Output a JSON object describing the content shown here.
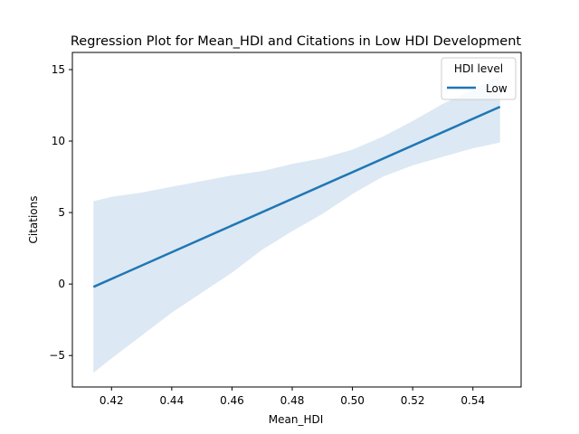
{
  "chart_data": {
    "type": "line",
    "title": "Regression Plot for Mean_HDI and Citations in Low HDI Development",
    "xlabel": "Mean_HDI",
    "ylabel": "Citations",
    "xlim": [
      0.407,
      0.556
    ],
    "ylim": [
      -7.2,
      16.2
    ],
    "x_ticks": [
      0.42,
      0.44,
      0.46,
      0.48,
      0.5,
      0.52,
      0.54
    ],
    "x_tick_labels": [
      "0.42",
      "0.44",
      "0.46",
      "0.48",
      "0.50",
      "0.52",
      "0.54"
    ],
    "y_ticks": [
      -5,
      0,
      5,
      10,
      15
    ],
    "y_tick_labels": [
      "−5",
      "0",
      "5",
      "10",
      "15"
    ],
    "grid": false,
    "legend": {
      "title": "HDI level",
      "placement": "top-right",
      "entries": [
        "Low"
      ]
    },
    "series": [
      {
        "name": "Low",
        "color": "#1f77b4",
        "band_color": "#dce8f3",
        "x": [
          0.414,
          0.549
        ],
        "y": [
          -0.2,
          12.4
        ]
      }
    ],
    "confidence_band": {
      "x": [
        0.414,
        0.42,
        0.43,
        0.44,
        0.45,
        0.46,
        0.47,
        0.48,
        0.49,
        0.5,
        0.51,
        0.52,
        0.53,
        0.54,
        0.549
      ],
      "upper": [
        5.8,
        6.1,
        6.4,
        6.8,
        7.2,
        7.6,
        7.9,
        8.4,
        8.8,
        9.4,
        10.3,
        11.4,
        12.6,
        13.6,
        14.6
      ],
      "lower": [
        -6.2,
        -5.2,
        -3.6,
        -2.0,
        -0.6,
        0.8,
        2.4,
        3.7,
        4.9,
        6.3,
        7.5,
        8.3,
        8.9,
        9.5,
        9.9
      ]
    }
  }
}
